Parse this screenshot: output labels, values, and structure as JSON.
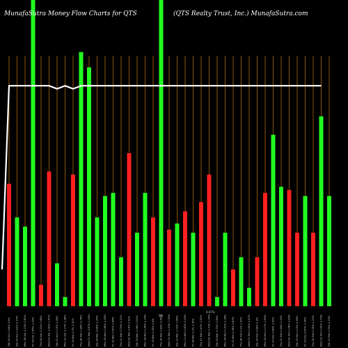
{
  "chart_data": {
    "type": "bar",
    "title_left": "MunafaSutra  Money Flow  Charts for QTS",
    "title_right": "(QTS Realty Trust, Inc.) MunafaSutra.com",
    "ylim": [
      0,
      100
    ],
    "grid": "vertical",
    "categories": [
      "Tue 16 Apr 0.44% 0.6%",
      "Tue 09 Apr 0.02% 0.15%",
      "Mon 08 Apr 1.13% 0.62%",
      "Fri 05 Apr 1.56% 1.23%",
      "Thu 04 Apr 0.12% 0.44%",
      "Wed 03 Apr 1.62% 1.61%",
      "Tue 02 Apr 0.13% 1.06%",
      "Mon 01 Apr 0.17% 1.38%",
      "Fri 29 Mar 0.7% 1.31%",
      "Thu 28 Mar 1.98% 0.78%",
      "Wed 27 Mar 0.67% 0.16%",
      "Tue 26 Mar 2.85% 1.39%",
      "Mon 25 Mar 0.46% 1.45%",
      "Fri 22 Mar 0.87% 0.44%",
      "Thu 21 Mar 0.79% 2.11%",
      "Wed 20 Mar 0.4% 0.52%",
      "Tue 19 Mar 1.06% 0.51%",
      "Mon 18 Mar 0.34% 2.24%",
      "Fri 15 Mar 0.05% 0.4%",
      "Thu 14 Mar 0.99% 0.68%",
      "Wed 13 Mar 1.23% 1.09%",
      "Tue 12 Mar 1.79% 0.56%",
      "Mon 11 Mar 0.83% 0.93%",
      "Fri 08 Mar 0.2% 1.35%",
      "Thu 07 Mar 1.47% 1.52%",
      "Wed 06 Mar 0.73% 1.79%",
      "Tue 05 Mar 0.72% 0.36%",
      "Mon 04 Mar 0.37% 0.36%",
      "Fri 01 Mar 0.08% 0.83%",
      "Thu 28 Feb 0.2% 1.57%",
      "Wed 27 Feb 0.05% 0.47%",
      "Tue 26 Feb 0.28% 0.9%",
      "Mon 25 Feb 2.17% 2.08%",
      "Fri 22 Feb 0.58% 1.53%",
      "Thu 21 Feb 0.44% 2.12%",
      "Wed 20 Feb 0.78% 0.06%",
      "Tue 19 Feb 0.13% 0.69%",
      "Fri 15 Feb 0.67% 1.06%",
      "Thu 14 Feb 0.39% 1.21%",
      "Wed 13 Feb 0.53% 0.79%",
      "Tue 12 Feb 0.79% 2.23%"
    ],
    "values": [
      40,
      29,
      26,
      100,
      7,
      44,
      14,
      3,
      43,
      83,
      78,
      29,
      36,
      37,
      16,
      50,
      24,
      37,
      29,
      100,
      25,
      27,
      31,
      24,
      34,
      43,
      3,
      24,
      12,
      16,
      6,
      16,
      37,
      56,
      39,
      38,
      24,
      36,
      24,
      62,
      36
    ],
    "colors": [
      "red",
      "green",
      "green",
      "green",
      "red",
      "red",
      "green",
      "green",
      "red",
      "green",
      "green",
      "green",
      "green",
      "green",
      "green",
      "red",
      "green",
      "green",
      "red",
      "green",
      "red",
      "green",
      "red",
      "green",
      "red",
      "red",
      "green",
      "green",
      "red",
      "green",
      "green",
      "red",
      "red",
      "green",
      "green",
      "red",
      "red",
      "green",
      "red",
      "green",
      "green"
    ],
    "line": [
      12,
      72,
      72,
      72,
      72,
      72,
      72,
      71,
      72,
      71,
      72,
      72,
      72,
      72,
      72,
      72,
      72,
      72,
      72,
      72,
      72,
      72,
      72,
      72,
      72,
      72,
      72,
      72,
      72,
      72,
      72,
      72,
      72,
      72,
      72,
      72,
      72,
      72,
      72,
      72,
      72
    ],
    "annotations": [
      "0%",
      "0.07%"
    ],
    "palette": {
      "background": "#000000",
      "up": "#22ff22",
      "down": "#ff2020",
      "grid": "#b36a0a",
      "line": "#ffffff"
    }
  }
}
